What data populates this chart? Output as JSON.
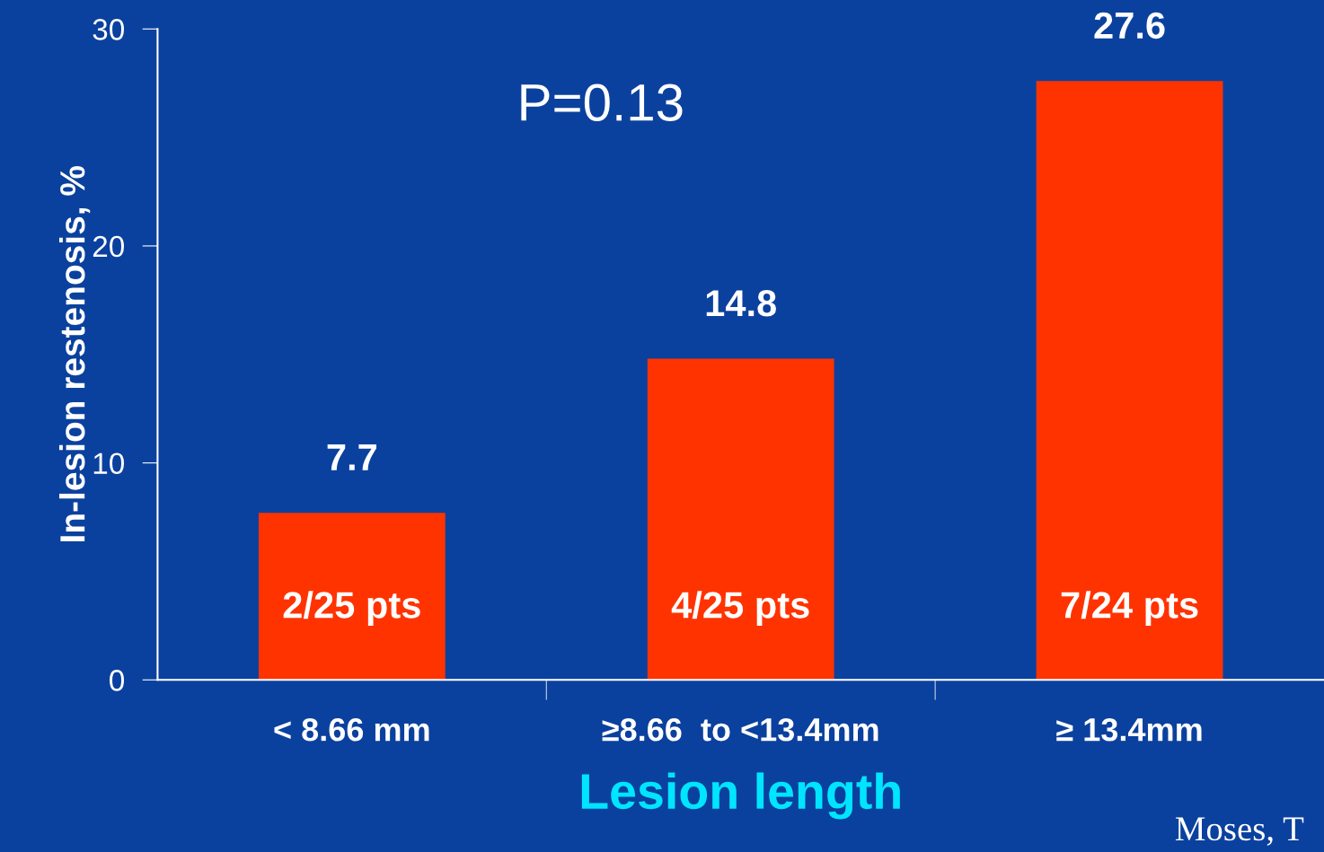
{
  "chart_data": {
    "type": "bar",
    "xlabel": "Lesion length",
    "ylabel": "In-lesion restenosis, %",
    "categories": [
      "< 8.66 mm",
      "≥8.66  to <13.4mm",
      "≥ 13.4mm"
    ],
    "values": [
      7.7,
      14.8,
      27.6
    ],
    "color": "#ff3300",
    "ylim": [
      0,
      30
    ],
    "yticks": [
      0,
      10,
      20,
      30
    ],
    "data_labels": true,
    "grid": false,
    "legend": false,
    "annotations": [
      "P=0.13",
      "2/25 pts",
      "4/25 pts",
      "7/24 pts",
      "Moses, T"
    ]
  }
}
